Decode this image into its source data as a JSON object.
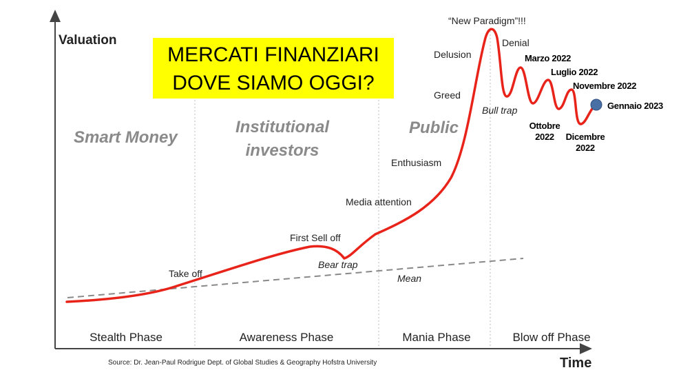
{
  "title_lines": [
    "MERCATI FINANZIARI",
    "DOVE SIAMO OGGI?"
  ],
  "axes": {
    "y": "Valuation",
    "x": "Time"
  },
  "groups": {
    "smart_money": "Smart Money",
    "institutional": [
      "Institutional",
      "investors"
    ],
    "public": "Public"
  },
  "phases": [
    "Stealth Phase",
    "Awareness Phase",
    "Mania Phase",
    "Blow off Phase"
  ],
  "annotations": {
    "take_off": "Take off",
    "first_sell_off": "First Sell off",
    "bear_trap": "Bear trap",
    "mean": "Mean",
    "media_attention": "Media attention",
    "enthusiasm": "Enthusiasm",
    "greed": "Greed",
    "delusion": "Delusion",
    "new_paradigm": "“New Paradigm”!!!",
    "denial": "Denial",
    "bull_trap": "Bull trap"
  },
  "dates": {
    "marzo": "Marzo 2022",
    "luglio": "Luglio 2022",
    "novembre": "Novembre 2022",
    "gennaio": "Gennaio 2023",
    "ottobre": [
      "Ottobre",
      "2022"
    ],
    "dicembre": [
      "Dicembre",
      "2022"
    ]
  },
  "source": "Source: Dr. Jean-Paul Rodrigue Dept. of Global Studies & Geography Hofstra University"
}
